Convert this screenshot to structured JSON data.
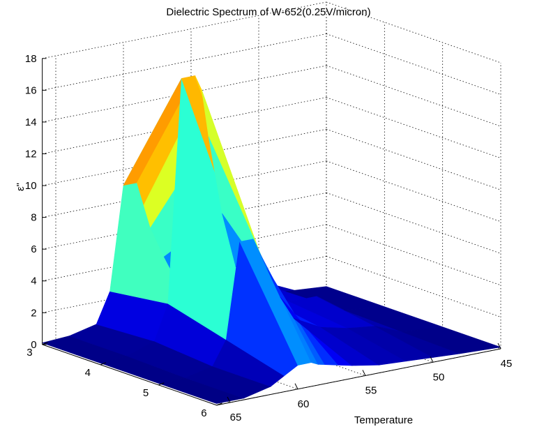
{
  "chart_data": {
    "type": "surface",
    "title": "Dielectric Spectrum of W-652(0.25V/micron)",
    "xlabel": "Temperature",
    "ylabel": "",
    "zlabel": "ε\"",
    "x_ticks": [
      "65",
      "60",
      "55",
      "50",
      "45"
    ],
    "y_ticks": [
      "3",
      "4",
      "5",
      "6"
    ],
    "z_ticks": [
      "0",
      "2",
      "4",
      "6",
      "8",
      "10",
      "12",
      "14",
      "16",
      "18"
    ],
    "xlim": [
      45,
      66
    ],
    "ylim": [
      3,
      6
    ],
    "zlim": [
      0,
      18
    ],
    "grid": true,
    "colormap": "jet",
    "surface_rows": [
      {
        "y": 3.0,
        "x": [
          45,
          48,
          50,
          52,
          54,
          56,
          57,
          58,
          58.5,
          59,
          60,
          61,
          62,
          64,
          66
        ],
        "z": [
          0.1,
          0.3,
          1.3,
          1.2,
          1.3,
          2.2,
          4.0,
          6.0,
          7.5,
          9.0,
          9.0,
          2.5,
          0.6,
          0.2,
          0.1
        ]
      },
      {
        "y": 4.0,
        "x": [
          45,
          48,
          50,
          52,
          54,
          56,
          57,
          58,
          58.5,
          59,
          60,
          61,
          62,
          64,
          66
        ],
        "z": [
          0.1,
          0.4,
          1.6,
          1.6,
          2.2,
          4.5,
          8.0,
          13.0,
          16.0,
          17.0,
          17.0,
          3.0,
          0.8,
          0.2,
          0.1
        ]
      },
      {
        "y": 5.0,
        "x": [
          45,
          48,
          50,
          52,
          54,
          56,
          57,
          58,
          58.5,
          59,
          60,
          61,
          62,
          64,
          66
        ],
        "z": [
          0.1,
          0.3,
          1.0,
          1.2,
          1.6,
          2.5,
          4.0,
          6.0,
          7.0,
          8.0,
          8.0,
          2.0,
          0.5,
          0.1,
          0.1
        ]
      },
      {
        "y": 6.0,
        "x": [
          45,
          48,
          50,
          52,
          54,
          56,
          57,
          58,
          58.5,
          59,
          60,
          61,
          62,
          64,
          66
        ],
        "z": [
          0.1,
          0.2,
          0.3,
          0.4,
          0.5,
          0.8,
          1.0,
          1.2,
          1.3,
          1.5,
          1.5,
          1.0,
          0.5,
          0.1,
          0.1
        ]
      }
    ]
  }
}
